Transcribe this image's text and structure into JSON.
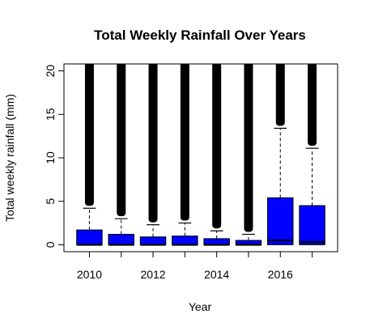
{
  "chart_data": {
    "type": "boxplot",
    "title": "Total Weekly Rainfall Over Years",
    "xlabel": "Year",
    "ylabel": "Total weekly rainfall (mm)",
    "x_tick_labels": [
      "2010",
      "2012",
      "2014",
      "2016"
    ],
    "y_tick_labels": [
      "0",
      "5",
      "10",
      "15",
      "20"
    ],
    "y_ticks": [
      0,
      5,
      10,
      15,
      20
    ],
    "ylim": [
      -0.8,
      20.8
    ],
    "grid": false,
    "box_color": "#0000ff",
    "outlier_color": "#000000",
    "categories": [
      "2010",
      "2011",
      "2012",
      "2013",
      "2014",
      "2015",
      "2016",
      "2017"
    ],
    "boxes": [
      {
        "year": "2010",
        "min": 0,
        "q1": 0,
        "median": 0,
        "q3": 1.7,
        "whisker_high": 4.2
      },
      {
        "year": "2011",
        "min": 0,
        "q1": 0,
        "median": 0,
        "q3": 1.2,
        "whisker_high": 3.0
      },
      {
        "year": "2012",
        "min": 0,
        "q1": 0,
        "median": 0,
        "q3": 0.9,
        "whisker_high": 2.3
      },
      {
        "year": "2013",
        "min": 0,
        "q1": 0,
        "median": 0,
        "q3": 1.0,
        "whisker_high": 2.5
      },
      {
        "year": "2014",
        "min": 0,
        "q1": 0,
        "median": 0,
        "q3": 0.7,
        "whisker_high": 1.6
      },
      {
        "year": "2015",
        "min": 0,
        "q1": 0,
        "median": 0,
        "q3": 0.5,
        "whisker_high": 1.2
      },
      {
        "year": "2016",
        "min": 0,
        "q1": 0,
        "median": 0.5,
        "q3": 5.4,
        "whisker_high": 13.4
      },
      {
        "year": "2017",
        "min": 0,
        "q1": 0,
        "median": 0.3,
        "q3": 4.5,
        "whisker_high": 11.1
      }
    ]
  }
}
